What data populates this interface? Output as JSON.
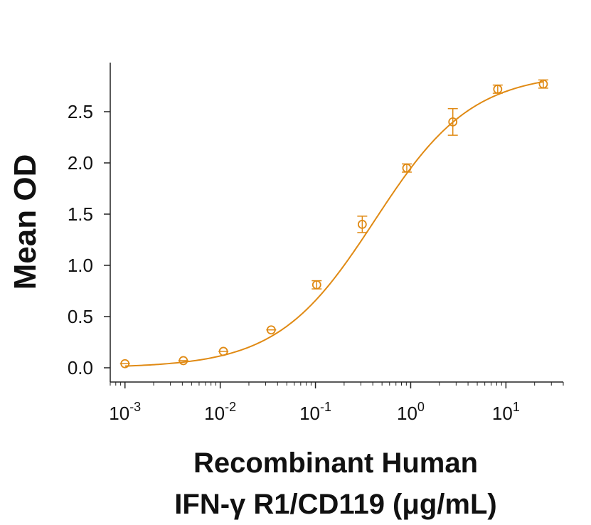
{
  "chart_data": {
    "type": "scatter",
    "xscale": "log",
    "xlim": [
      0.0007,
      40
    ],
    "ylim": [
      -0.1,
      2.95
    ],
    "grid": false,
    "color": "#E08A14",
    "ylabel": "Mean OD",
    "xlabel_lines": [
      "Recombinant Human",
      "IFN-γ R1/CD119 (μg/mL)"
    ],
    "yticks": [
      {
        "value": 0.0,
        "label": "0.0"
      },
      {
        "value": 0.5,
        "label": "0.5"
      },
      {
        "value": 1.0,
        "label": "1.0"
      },
      {
        "value": 1.5,
        "label": "1.5"
      },
      {
        "value": 2.0,
        "label": "2.0"
      },
      {
        "value": 2.5,
        "label": "2.5"
      }
    ],
    "xticks": [
      {
        "value": 0.001,
        "base": "10",
        "exp": "-3"
      },
      {
        "value": 0.01,
        "base": "10",
        "exp": "-2"
      },
      {
        "value": 0.1,
        "base": "10",
        "exp": "-1"
      },
      {
        "value": 1,
        "base": "10",
        "exp": "0"
      },
      {
        "value": 10,
        "base": "10",
        "exp": "1"
      }
    ],
    "points": [
      {
        "x": 0.001,
        "y": 0.04,
        "err": 0.01
      },
      {
        "x": 0.0041,
        "y": 0.07,
        "err": 0.01
      },
      {
        "x": 0.0108,
        "y": 0.16,
        "err": 0.02
      },
      {
        "x": 0.0343,
        "y": 0.37,
        "err": 0.02
      },
      {
        "x": 0.103,
        "y": 0.81,
        "err": 0.04
      },
      {
        "x": 0.31,
        "y": 1.4,
        "err": 0.08
      },
      {
        "x": 0.91,
        "y": 1.95,
        "err": 0.04
      },
      {
        "x": 2.77,
        "y": 2.4,
        "err": 0.13
      },
      {
        "x": 8.2,
        "y": 2.72,
        "err": 0.04
      },
      {
        "x": 24.7,
        "y": 2.77,
        "err": 0.04
      }
    ],
    "fit": {
      "model": "4PL",
      "bottom": 0.0,
      "top": 2.88,
      "ec50": 0.42,
      "hill": 0.85
    }
  }
}
